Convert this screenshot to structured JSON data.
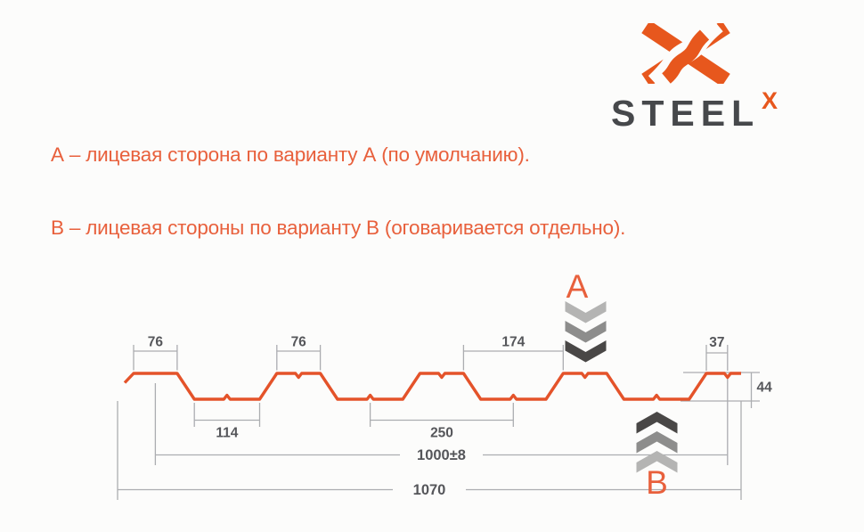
{
  "logo": {
    "brand": "STEEL",
    "sup": "X"
  },
  "notes": {
    "line_a": "А – лицевая сторона по варианту А (по умолчанию).",
    "line_b": "В – лицевая стороны по варианту В (оговаривается отдельно)."
  },
  "markers": {
    "top": "A",
    "bottom": "B"
  },
  "dims": {
    "crest1": "76",
    "crest2": "76",
    "crest_gap": "174",
    "edge_notch": "37",
    "valley": "114",
    "pitch": "250",
    "cover": "1000±8",
    "overall": "1070",
    "height": "44"
  },
  "diagram": {
    "type": "profiled-sheet-cross-section",
    "height_mm": 44,
    "pitch_mm": 250,
    "crest_width_mm": 76,
    "valley_width_mm": 114,
    "crest_gap_mm": 174,
    "edge_to_notch_mm": 37,
    "cover_width_mm": 1000,
    "cover_tolerance_mm": 8,
    "overall_width_mm": 1070,
    "modules": 4
  },
  "colors": {
    "bg": "#fcfcfb",
    "accent": "#e8603c",
    "logo_orange": "#e7571d",
    "logo_dark": "#46484b",
    "profile": "#e4532a",
    "dim_line": "#abadb0",
    "dim_text": "#55565a",
    "chevron_light": "#b4b4b3",
    "chevron_mid": "#8d8d8c",
    "chevron_dark": "#494746"
  }
}
